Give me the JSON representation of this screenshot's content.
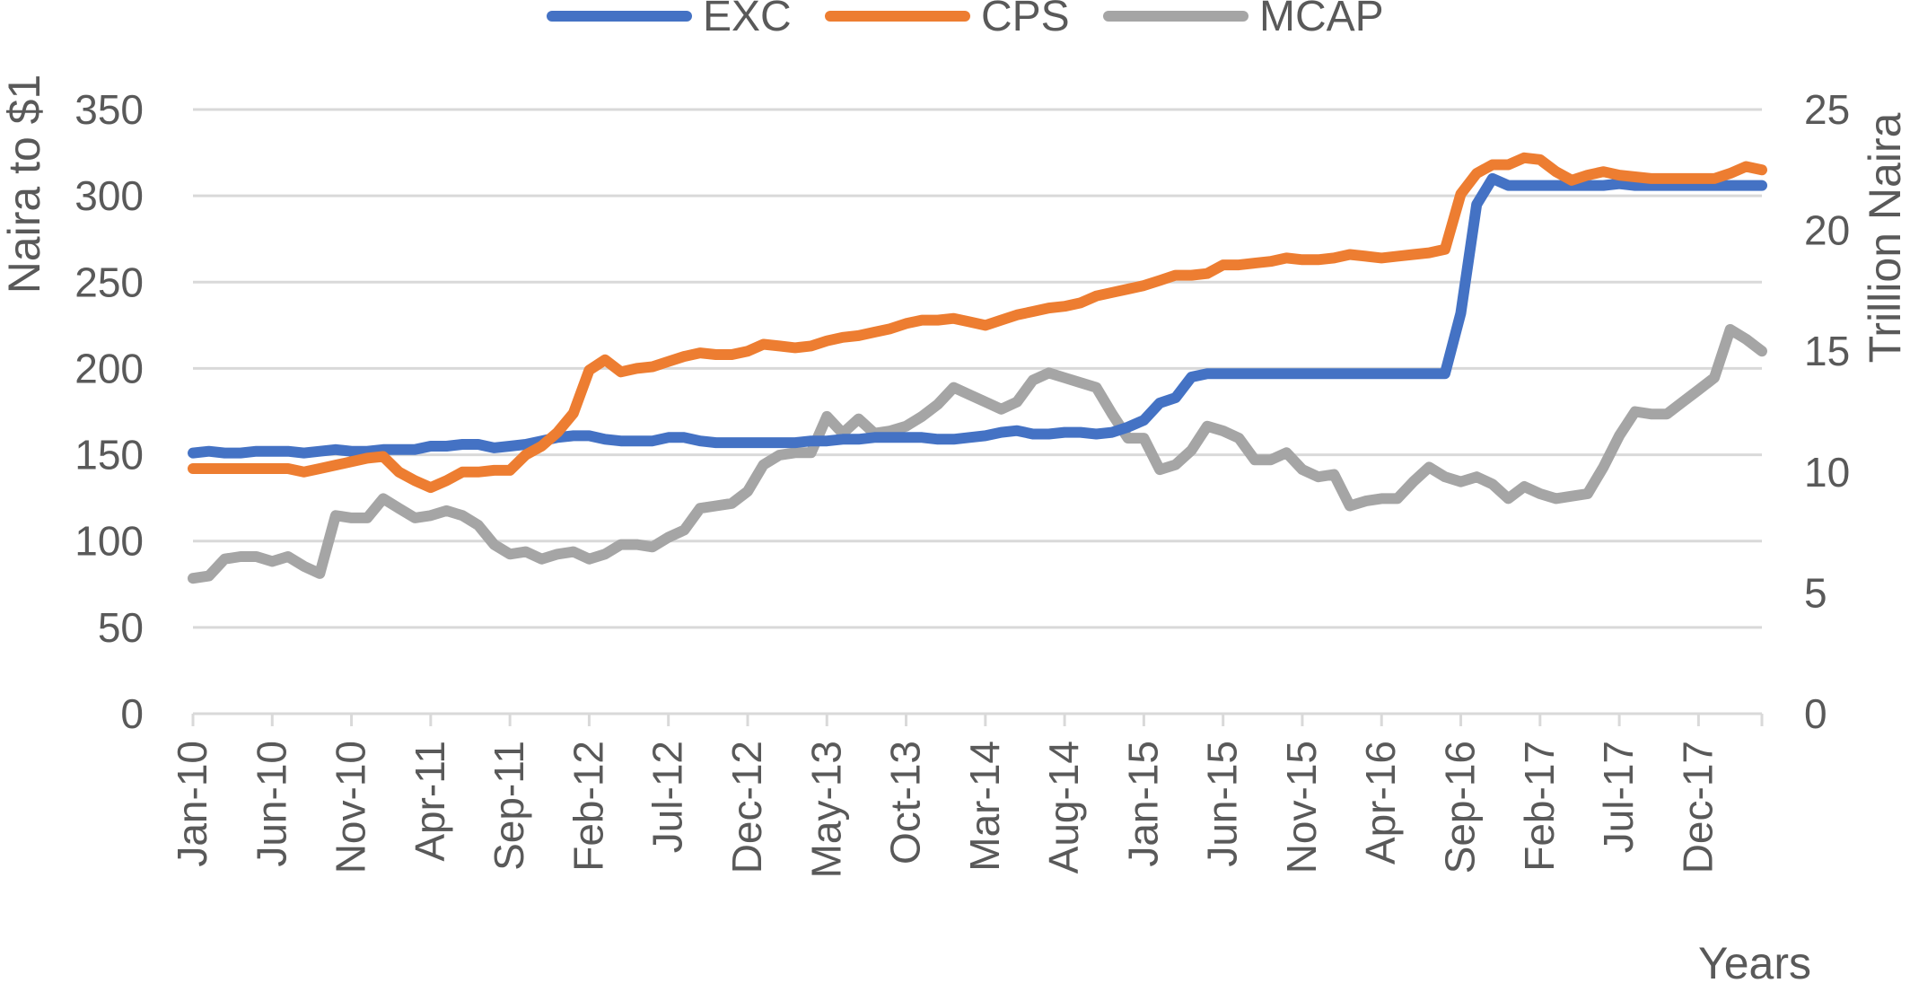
{
  "chart_data": {
    "type": "line",
    "title": "",
    "xlabel": "Years",
    "ylabel_left": "Naira to $1",
    "ylabel_right": "Trillion Naira",
    "ylim_left": [
      0,
      350
    ],
    "ylim_right": [
      0,
      25
    ],
    "yticks_left": [
      "0",
      "50",
      "100",
      "150",
      "200",
      "250",
      "300",
      "350"
    ],
    "yticks_right": [
      "0",
      "5",
      "10",
      "15",
      "20",
      "25"
    ],
    "grid": true,
    "legend_position": "top",
    "x_start": "Jan-10",
    "x_end": "Apr-18",
    "xtick_labels": [
      "Jan-10",
      "Jun-10",
      "Nov-10",
      "Apr-11",
      "Sep-11",
      "Feb-12",
      "Jul-12",
      "Dec-12",
      "May-13",
      "Oct-13",
      "Mar-14",
      "Aug-14",
      "Jan-15",
      "Jun-15",
      "Nov-15",
      "Apr-16",
      "Sep-16",
      "Feb-17",
      "Jul-17",
      "Dec-17"
    ],
    "series": [
      {
        "name": "EXC",
        "axis": "left",
        "color": "#4472c4",
        "values": [
          151,
          152,
          151,
          151,
          152,
          152,
          152,
          151,
          152,
          153,
          152,
          152,
          153,
          153,
          153,
          155,
          155,
          156,
          156,
          154,
          155,
          156,
          158,
          160,
          161,
          161,
          159,
          158,
          158,
          158,
          160,
          160,
          158,
          157,
          157,
          157,
          157,
          157,
          157,
          158,
          158,
          159,
          159,
          160,
          160,
          160,
          160,
          159,
          159,
          160,
          161,
          163,
          164,
          162,
          162,
          163,
          163,
          162,
          163,
          166,
          170,
          180,
          183,
          195,
          197,
          197,
          197,
          197,
          197,
          197,
          197,
          197,
          197,
          197,
          197,
          197,
          197,
          197,
          197,
          197,
          232,
          295,
          310,
          306,
          306,
          306,
          306,
          306,
          306,
          306,
          307,
          306,
          306,
          306,
          306,
          306,
          306,
          306,
          306,
          306
        ]
      },
      {
        "name": "CPS",
        "axis": "left",
        "color": "#ed7d31",
        "values": [
          142,
          142,
          142,
          142,
          142,
          142,
          142,
          140,
          142,
          144,
          146,
          148,
          149,
          140,
          135,
          131,
          135,
          140,
          140,
          141,
          141,
          150,
          155,
          163,
          174,
          199,
          205,
          198,
          200,
          201,
          204,
          207,
          209,
          208,
          208,
          210,
          214,
          213,
          212,
          213,
          216,
          218,
          219,
          221,
          223,
          226,
          228,
          228,
          229,
          227,
          225,
          228,
          231,
          233,
          235,
          236,
          238,
          242,
          244,
          246,
          248,
          251,
          254,
          254,
          255,
          260,
          260,
          261,
          262,
          264,
          263,
          263,
          264,
          266,
          265,
          264,
          265,
          266,
          267,
          269,
          301,
          313,
          318,
          318,
          322,
          321,
          314,
          309,
          312,
          314,
          312,
          311,
          310,
          310,
          310,
          310,
          310,
          313,
          317,
          315
        ]
      },
      {
        "name": "MCAP",
        "axis": "right",
        "color": "#a5a5a5",
        "values": [
          5.6,
          5.7,
          6.4,
          6.5,
          6.5,
          6.3,
          6.5,
          6.1,
          5.8,
          8.2,
          8.1,
          8.1,
          8.9,
          8.5,
          8.1,
          8.2,
          8.4,
          8.2,
          7.8,
          7.0,
          6.6,
          6.7,
          6.4,
          6.6,
          6.7,
          6.4,
          6.6,
          7.0,
          7.0,
          6.9,
          7.3,
          7.6,
          8.5,
          8.6,
          8.7,
          9.2,
          10.3,
          10.7,
          10.8,
          10.8,
          12.3,
          11.6,
          12.2,
          11.6,
          11.7,
          11.9,
          12.3,
          12.8,
          13.5,
          13.2,
          12.9,
          12.6,
          12.9,
          13.8,
          14.1,
          13.9,
          13.7,
          13.5,
          12.4,
          11.4,
          11.4,
          10.1,
          10.3,
          10.9,
          11.9,
          11.7,
          11.4,
          10.5,
          10.5,
          10.8,
          10.1,
          9.8,
          9.9,
          8.6,
          8.8,
          8.9,
          8.9,
          9.6,
          10.2,
          9.8,
          9.6,
          9.8,
          9.5,
          8.9,
          9.4,
          9.1,
          8.9,
          9.0,
          9.1,
          10.2,
          11.5,
          12.5,
          12.4,
          12.4,
          12.9,
          13.4,
          13.9,
          15.9,
          15.5,
          15.0
        ]
      }
    ]
  }
}
